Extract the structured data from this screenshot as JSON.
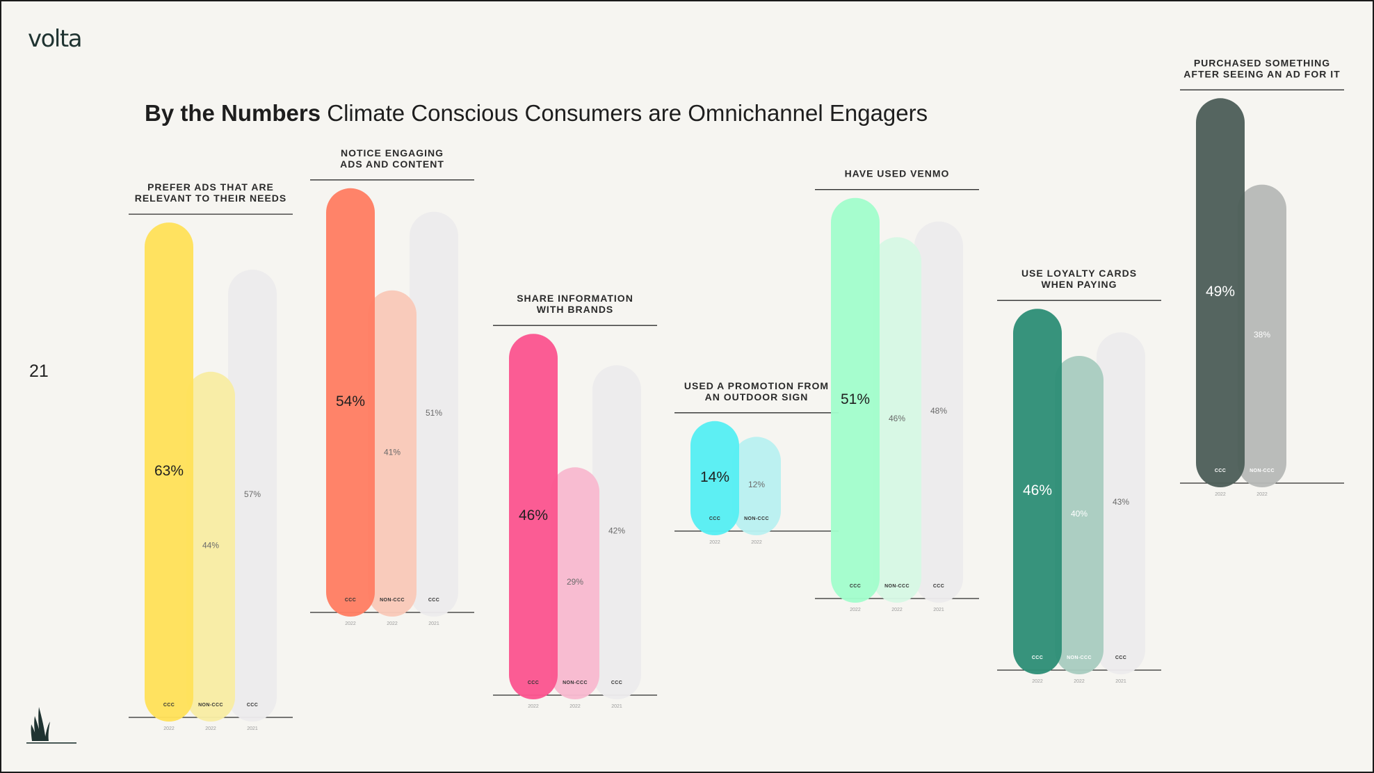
{
  "brand": {
    "logo_text": "volta"
  },
  "page": {
    "number": "21"
  },
  "header": {
    "title_bold": "By the Numbers",
    "title_rest": "Climate Conscious Consumers are Omnichannel Engagers"
  },
  "colors": {
    "background": "#f6f5f1",
    "rule": "#2b2b2b"
  },
  "chart_data": [
    {
      "type": "bar",
      "title": [
        "PREFER ADS THAT ARE",
        "RELEVANT TO THEIR NEEDS"
      ],
      "colors": [
        "#ffe15a",
        "#f8eca3",
        "#ecebec"
      ],
      "series": [
        {
          "name": "CCC",
          "year": "2022",
          "value": 63,
          "label": "63%"
        },
        {
          "name": "NON-CCC",
          "year": "2022",
          "value": 44,
          "label": "44%"
        },
        {
          "name": "CCC",
          "year": "2021",
          "value": 57,
          "label": "57%"
        }
      ]
    },
    {
      "type": "bar",
      "title": [
        "NOTICE ENGAGING",
        "ADS AND CONTENT"
      ],
      "colors": [
        "#ff7e63",
        "#f9c9b8",
        "#ecebec"
      ],
      "series": [
        {
          "name": "CCC",
          "year": "2022",
          "value": 54,
          "label": "54%"
        },
        {
          "name": "NON-CCC",
          "year": "2022",
          "value": 41,
          "label": "41%"
        },
        {
          "name": "CCC",
          "year": "2021",
          "value": 51,
          "label": "51%"
        }
      ]
    },
    {
      "type": "bar",
      "title": [
        "SHARE INFORMATION",
        "WITH BRANDS"
      ],
      "colors": [
        "#fb5590",
        "#f8b9cf",
        "#ecebec"
      ],
      "series": [
        {
          "name": "CCC",
          "year": "2022",
          "value": 46,
          "label": "46%"
        },
        {
          "name": "NON-CCC",
          "year": "2022",
          "value": 29,
          "label": "29%"
        },
        {
          "name": "CCC",
          "year": "2021",
          "value": 42,
          "label": "42%"
        }
      ]
    },
    {
      "type": "bar",
      "title": [
        "USED A PROMOTION FROM",
        "AN OUTDOOR SIGN"
      ],
      "colors": [
        "#56eef2",
        "#b9f0f0"
      ],
      "series": [
        {
          "name": "CCC",
          "year": "2022",
          "value": 14,
          "label": "14%"
        },
        {
          "name": "NON-CCC",
          "year": "2022",
          "value": 12,
          "label": "12%"
        }
      ]
    },
    {
      "type": "bar",
      "title": [
        "HAVE USED VENMO"
      ],
      "colors": [
        "#a2fdcc",
        "#d6f8e4",
        "#ecebec"
      ],
      "series": [
        {
          "name": "CCC",
          "year": "2022",
          "value": 51,
          "label": "51%"
        },
        {
          "name": "NON-CCC",
          "year": "2022",
          "value": 46,
          "label": "46%"
        },
        {
          "name": "CCC",
          "year": "2021",
          "value": 48,
          "label": "48%"
        }
      ]
    },
    {
      "type": "bar",
      "title": [
        "USE LOYALTY CARDS",
        "WHEN PAYING"
      ],
      "colors": [
        "#2f8f77",
        "#a9ccc0",
        "#ecebec"
      ],
      "series": [
        {
          "name": "CCC",
          "year": "2022",
          "value": 46,
          "label": "46%"
        },
        {
          "name": "NON-CCC",
          "year": "2022",
          "value": 40,
          "label": "40%"
        },
        {
          "name": "CCC",
          "year": "2021",
          "value": 43,
          "label": "43%"
        }
      ]
    },
    {
      "type": "bar",
      "title": [
        "PURCHASED SOMETHING",
        "AFTER SEEING AN AD FOR IT"
      ],
      "colors": [
        "#4e5f5a",
        "#b7b9b7"
      ],
      "series": [
        {
          "name": "CCC",
          "year": "2022",
          "value": 49,
          "label": "49%"
        },
        {
          "name": "NON-CCC",
          "year": "2022",
          "value": 38,
          "label": "38%"
        }
      ]
    }
  ]
}
